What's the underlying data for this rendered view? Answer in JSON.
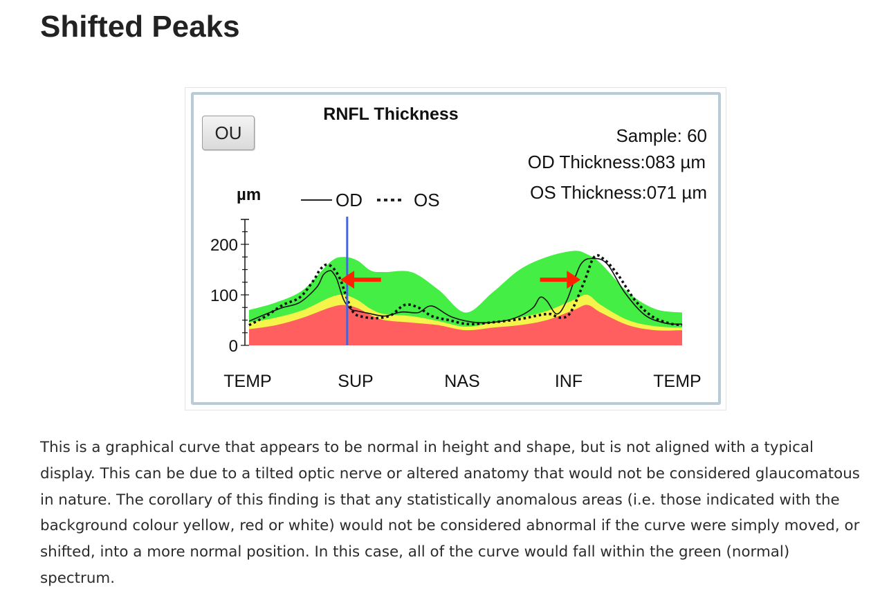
{
  "page": {
    "title": "Shifted Peaks",
    "description": "This is a graphical curve that appears to be normal in height and shape, but is not aligned with a typical display. This can be due to a tilted optic nerve or altered anatomy that would not be considered glaucomatous in nature. The corollary of this finding is that any statistically anomalous areas (i.e. those indicated with the background colour yellow, red or white) would not be considered abnormal if the curve were simply moved, or shifted, into a more normal position. In this case, all of the curve would fall within the green (normal) spectrum."
  },
  "figure": {
    "button_label": "OU",
    "stats": {
      "sample": "Sample: 60",
      "od_thickness": "OD Thickness:083 µm",
      "os_thickness": "OS Thickness:071 µm"
    }
  },
  "chart_data": {
    "type": "area",
    "title": "RNFL Thickness",
    "ylabel": "µm",
    "ylim": [
      0,
      200
    ],
    "yticks": [
      0,
      100,
      200
    ],
    "categories": [
      "TEMP",
      "SUP",
      "NAS",
      "INF",
      "TEMP"
    ],
    "x_range": [
      0,
      256
    ],
    "legend": [
      {
        "name": "OD",
        "style": "solid"
      },
      {
        "name": "OS",
        "style": "dotted"
      }
    ],
    "colors": {
      "normal": "#44ee44",
      "borderline": "#f4f44a",
      "outside_normal": "#ff5f5f",
      "od": "#111111",
      "os": "#111111",
      "marker_line": "#4466dd",
      "arrow": "#ff2200"
    },
    "bands": {
      "x": [
        0,
        16,
        32,
        48,
        56,
        64,
        72,
        80,
        96,
        112,
        128,
        144,
        160,
        176,
        192,
        200,
        208,
        224,
        240,
        256
      ],
      "red_upper": [
        32,
        40,
        55,
        75,
        80,
        74,
        60,
        50,
        45,
        40,
        30,
        35,
        40,
        50,
        70,
        80,
        65,
        40,
        30,
        30
      ],
      "yellow_upper": [
        45,
        55,
        70,
        95,
        100,
        90,
        72,
        62,
        58,
        48,
        37,
        45,
        55,
        68,
        90,
        100,
        80,
        50,
        38,
        35
      ],
      "green_upper": [
        70,
        85,
        110,
        165,
        175,
        168,
        148,
        145,
        145,
        110,
        65,
        105,
        150,
        175,
        187,
        180,
        162,
        105,
        72,
        65
      ]
    },
    "series": [
      {
        "name": "OD",
        "x": [
          0,
          10,
          20,
          30,
          40,
          44,
          48,
          50,
          52,
          56,
          60,
          64,
          70,
          80,
          90,
          100,
          108,
          120,
          135,
          150,
          160,
          168,
          172,
          176,
          182,
          188,
          196,
          204,
          212,
          222,
          234,
          246,
          256
        ],
        "values": [
          48,
          62,
          75,
          85,
          115,
          140,
          148,
          142,
          130,
          90,
          72,
          68,
          64,
          58,
          66,
          65,
          78,
          56,
          45,
          48,
          58,
          75,
          95,
          88,
          62,
          90,
          160,
          172,
          160,
          105,
          60,
          44,
          42
        ]
      },
      {
        "name": "OS",
        "x": [
          0,
          10,
          20,
          30,
          38,
          42,
          46,
          50,
          54,
          58,
          62,
          68,
          76,
          84,
          92,
          100,
          108,
          118,
          130,
          145,
          160,
          172,
          178,
          184,
          190,
          198,
          204,
          210,
          218,
          228,
          238,
          248,
          256
        ],
        "values": [
          40,
          58,
          80,
          95,
          128,
          150,
          160,
          152,
          130,
          92,
          64,
          56,
          54,
          60,
          80,
          75,
          58,
          50,
          42,
          46,
          52,
          60,
          62,
          55,
          65,
          125,
          175,
          170,
          140,
          90,
          58,
          44,
          40
        ]
      }
    ],
    "annotations": {
      "vertical_line_x": 58,
      "arrows": [
        {
          "direction": "left",
          "x_from": 78,
          "x_to": 54,
          "y": 130
        },
        {
          "direction": "right",
          "x_from": 172,
          "x_to": 196,
          "y": 130
        }
      ]
    }
  }
}
